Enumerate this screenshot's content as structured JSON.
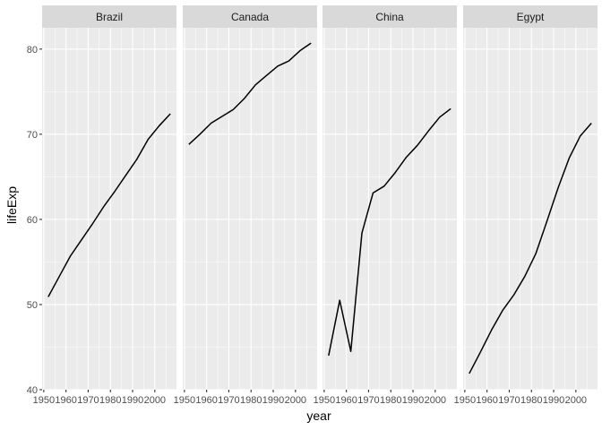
{
  "chart_data": {
    "type": "line",
    "xlabel": "year",
    "ylabel": "lifeExp",
    "xlim": [
      1949.25,
      2009.75
    ],
    "ylim": [
      40,
      82.5
    ],
    "x_ticks": [
      1950,
      1960,
      1970,
      1980,
      1990,
      2000
    ],
    "x_tick_labels": [
      "1950",
      "1960",
      "1970",
      "1980",
      "1990",
      "2000"
    ],
    "y_ticks": [
      40,
      50,
      60,
      70,
      80
    ],
    "y_tick_labels": [
      "40",
      "50",
      "60",
      "70",
      "80"
    ],
    "grid": true,
    "colors": {
      "panel_bg": "#ebebeb",
      "grid_major": "#ffffff",
      "strip_bg": "#d9d9d9",
      "line": "#000000"
    },
    "x": [
      1952,
      1957,
      1962,
      1967,
      1972,
      1977,
      1982,
      1987,
      1992,
      1997,
      2002,
      2007
    ],
    "facets": [
      {
        "name": "Brazil",
        "values": [
          50.9,
          53.3,
          55.7,
          57.6,
          59.5,
          61.5,
          63.3,
          65.2,
          67.1,
          69.4,
          71.0,
          72.4
        ]
      },
      {
        "name": "Canada",
        "values": [
          68.8,
          70.0,
          71.3,
          72.1,
          72.9,
          74.2,
          75.8,
          76.9,
          78.0,
          78.6,
          79.8,
          80.7
        ]
      },
      {
        "name": "China",
        "values": [
          44.0,
          50.5,
          44.5,
          58.4,
          63.1,
          63.9,
          65.5,
          67.3,
          68.7,
          70.4,
          72.0,
          73.0
        ]
      },
      {
        "name": "Egypt",
        "values": [
          41.9,
          44.4,
          46.99,
          49.3,
          51.1,
          53.3,
          56.0,
          59.8,
          63.7,
          67.2,
          69.8,
          71.3
        ]
      }
    ]
  }
}
